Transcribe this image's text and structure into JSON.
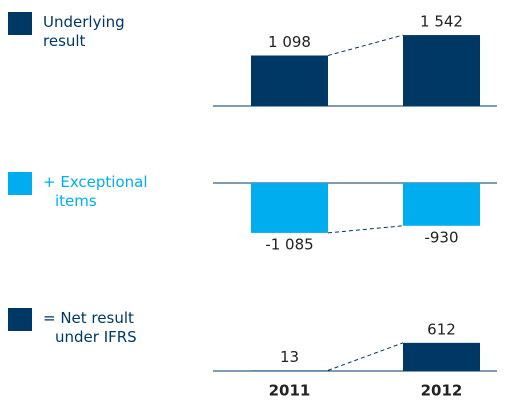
{
  "chart_data": [
    {
      "type": "bar",
      "series": [
        {
          "name": "Underlying result",
          "color": "#003865",
          "values": [
            1098,
            1542
          ],
          "value_labels": [
            "1 098",
            "1 542"
          ]
        }
      ]
    },
    {
      "type": "bar",
      "series": [
        {
          "name": "+ Exceptional items",
          "color": "#00aeef",
          "values": [
            -1085,
            -930
          ],
          "value_labels": [
            "-1 085",
            "-930"
          ]
        }
      ]
    },
    {
      "type": "bar",
      "categories": [
        "2011",
        "2012"
      ],
      "series": [
        {
          "name": "= Net result under IFRS",
          "color": "#003865",
          "values": [
            13,
            612
          ],
          "value_labels": [
            "13",
            "612"
          ]
        }
      ]
    }
  ]
}
